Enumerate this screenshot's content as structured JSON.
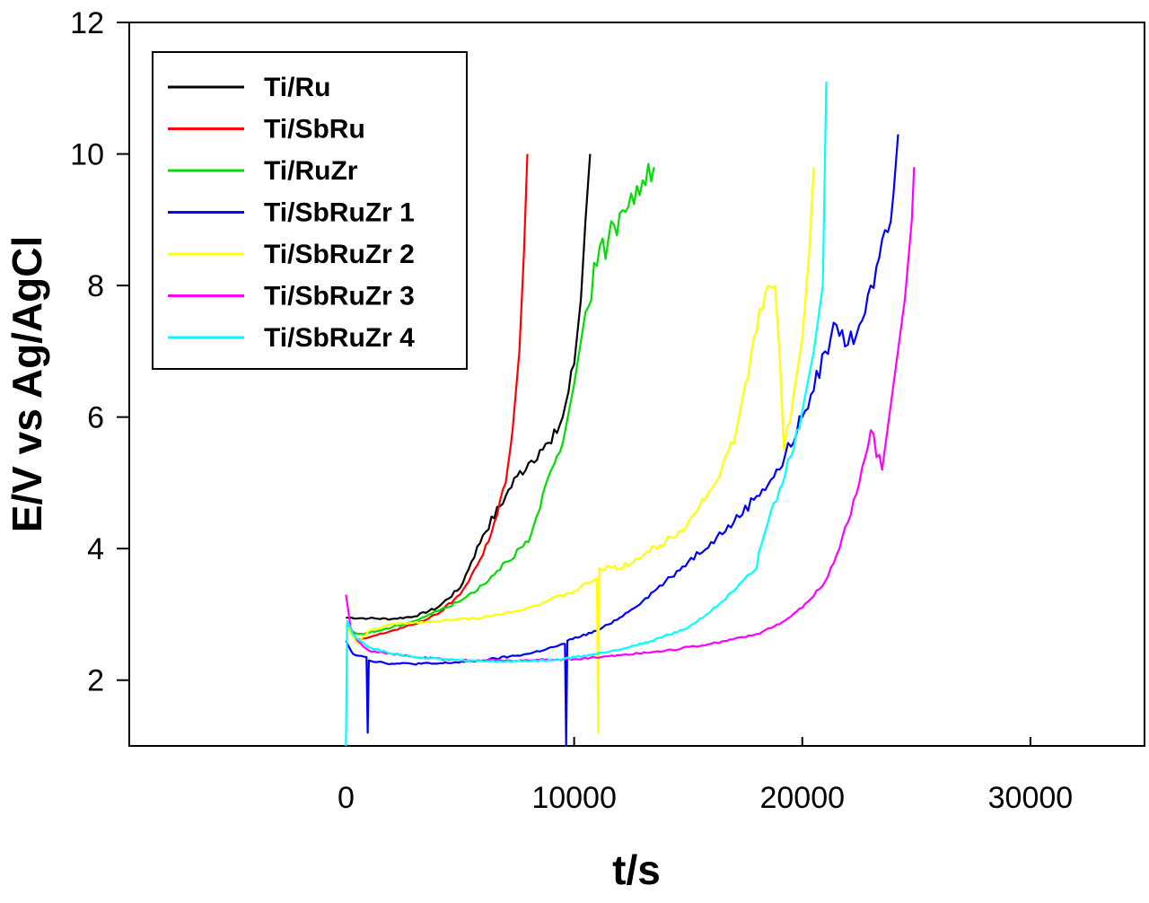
{
  "chart_data": {
    "type": "line",
    "title": "",
    "xlabel": "t/s",
    "ylabel": "E/V vs Ag/AgCl",
    "xlim": [
      -9500,
      35000
    ],
    "ylim": [
      1,
      12
    ],
    "xticks": [
      0,
      10000,
      20000,
      30000
    ],
    "yticks": [
      2,
      4,
      6,
      8,
      10,
      12
    ],
    "grid": false,
    "legend_position": "top-left",
    "series": [
      {
        "name": "Ti/Ru",
        "color": "#000000",
        "points": [
          [
            0,
            2.95
          ],
          [
            1000,
            2.94
          ],
          [
            2000,
            2.93
          ],
          [
            3000,
            2.97
          ],
          [
            4000,
            3.1
          ],
          [
            5000,
            3.4
          ],
          [
            5500,
            3.8
          ],
          [
            6000,
            4.2
          ],
          [
            7000,
            4.8
          ],
          [
            7500,
            5.1
          ],
          [
            8000,
            5.3
          ],
          [
            8500,
            5.5
          ],
          [
            9000,
            5.6
          ],
          [
            9500,
            6.0
          ],
          [
            10000,
            6.8
          ],
          [
            10300,
            7.8
          ],
          [
            10500,
            9.0
          ],
          [
            10700,
            10.0
          ]
        ]
      },
      {
        "name": "Ti/SbRu",
        "color": "#ff0000",
        "points": [
          [
            0,
            2.85
          ],
          [
            500,
            2.6
          ],
          [
            1000,
            2.65
          ],
          [
            2000,
            2.75
          ],
          [
            3000,
            2.85
          ],
          [
            4000,
            3.0
          ],
          [
            5000,
            3.3
          ],
          [
            6000,
            3.9
          ],
          [
            6500,
            4.4
          ],
          [
            7000,
            5.0
          ],
          [
            7300,
            5.8
          ],
          [
            7600,
            7.0
          ],
          [
            7800,
            8.5
          ],
          [
            7950,
            10.0
          ]
        ]
      },
      {
        "name": "Ti/RuZr",
        "color": "#00dd00",
        "points": [
          [
            0,
            2.8
          ],
          [
            500,
            2.7
          ],
          [
            1000,
            2.72
          ],
          [
            2000,
            2.8
          ],
          [
            3000,
            2.9
          ],
          [
            4000,
            3.05
          ],
          [
            5000,
            3.2
          ],
          [
            6000,
            3.45
          ],
          [
            7000,
            3.8
          ],
          [
            8000,
            4.1
          ],
          [
            8500,
            4.6
          ],
          [
            9000,
            5.2
          ],
          [
            9500,
            5.6
          ],
          [
            10000,
            6.5
          ],
          [
            10500,
            7.6
          ],
          [
            11000,
            8.3
          ],
          [
            11500,
            8.7
          ],
          [
            12000,
            9.1
          ],
          [
            12500,
            9.4
          ],
          [
            13000,
            9.6
          ],
          [
            13500,
            9.8
          ]
        ]
      },
      {
        "name": "Ti/SbRuZr 1",
        "color": "#0000ff",
        "points": [
          [
            0,
            2.6
          ],
          [
            300,
            2.4
          ],
          [
            900,
            2.35
          ],
          [
            950,
            1.2
          ],
          [
            1000,
            2.3
          ],
          [
            2000,
            2.25
          ],
          [
            4000,
            2.25
          ],
          [
            6000,
            2.3
          ],
          [
            8000,
            2.4
          ],
          [
            9600,
            2.55
          ],
          [
            9650,
            1.0
          ],
          [
            9700,
            2.6
          ],
          [
            11000,
            2.75
          ],
          [
            12000,
            2.95
          ],
          [
            13000,
            3.2
          ],
          [
            14000,
            3.5
          ],
          [
            15000,
            3.8
          ],
          [
            16000,
            4.1
          ],
          [
            17000,
            4.4
          ],
          [
            18000,
            4.8
          ],
          [
            19000,
            5.2
          ],
          [
            20000,
            6.0
          ],
          [
            20500,
            6.4
          ],
          [
            21000,
            7.0
          ],
          [
            21500,
            7.4
          ],
          [
            22000,
            7.1
          ],
          [
            22500,
            7.4
          ],
          [
            23000,
            8.0
          ],
          [
            23500,
            8.7
          ],
          [
            24000,
            9.4
          ],
          [
            24200,
            10.3
          ]
        ]
      },
      {
        "name": "Ti/SbRuZr 2",
        "color": "#ffff00",
        "points": [
          [
            0,
            2.85
          ],
          [
            500,
            2.55
          ],
          [
            1000,
            2.75
          ],
          [
            2000,
            2.85
          ],
          [
            4000,
            2.9
          ],
          [
            6000,
            2.95
          ],
          [
            8000,
            3.1
          ],
          [
            10000,
            3.35
          ],
          [
            11000,
            3.55
          ],
          [
            11050,
            1.2
          ],
          [
            11100,
            3.7
          ],
          [
            12000,
            3.7
          ],
          [
            14000,
            4.1
          ],
          [
            15000,
            4.4
          ],
          [
            16000,
            4.9
          ],
          [
            17000,
            5.6
          ],
          [
            17500,
            6.5
          ],
          [
            18000,
            7.3
          ],
          [
            18500,
            8.0
          ],
          [
            18800,
            8.0
          ],
          [
            19000,
            7.0
          ],
          [
            19200,
            5.5
          ],
          [
            19600,
            6.3
          ],
          [
            20000,
            7.2
          ],
          [
            20300,
            8.5
          ],
          [
            20500,
            9.8
          ]
        ]
      },
      {
        "name": "Ti/SbRuZr 3",
        "color": "#ff00ff",
        "points": [
          [
            0,
            3.3
          ],
          [
            200,
            2.8
          ],
          [
            500,
            2.6
          ],
          [
            1000,
            2.45
          ],
          [
            2000,
            2.4
          ],
          [
            3000,
            2.35
          ],
          [
            5000,
            2.3
          ],
          [
            8000,
            2.3
          ],
          [
            10000,
            2.32
          ],
          [
            12000,
            2.38
          ],
          [
            14000,
            2.45
          ],
          [
            16000,
            2.55
          ],
          [
            18000,
            2.7
          ],
          [
            19000,
            2.85
          ],
          [
            20000,
            3.1
          ],
          [
            21000,
            3.5
          ],
          [
            21500,
            3.9
          ],
          [
            22000,
            4.4
          ],
          [
            22500,
            5.0
          ],
          [
            23000,
            5.8
          ],
          [
            23500,
            5.2
          ],
          [
            24000,
            6.5
          ],
          [
            24500,
            7.8
          ],
          [
            24800,
            9.0
          ],
          [
            24900,
            9.8
          ]
        ]
      },
      {
        "name": "Ti/SbRuZr 4",
        "color": "#00ffff",
        "points": [
          [
            0,
            1.0
          ],
          [
            50,
            2.9
          ],
          [
            300,
            2.7
          ],
          [
            1000,
            2.5
          ],
          [
            2000,
            2.4
          ],
          [
            3000,
            2.35
          ],
          [
            5000,
            2.3
          ],
          [
            7000,
            2.28
          ],
          [
            9000,
            2.3
          ],
          [
            11000,
            2.4
          ],
          [
            13000,
            2.55
          ],
          [
            15000,
            2.8
          ],
          [
            16000,
            3.05
          ],
          [
            17000,
            3.35
          ],
          [
            18000,
            3.7
          ],
          [
            18100,
            3.95
          ],
          [
            18500,
            4.4
          ],
          [
            19000,
            4.9
          ],
          [
            19500,
            5.4
          ],
          [
            20000,
            6.1
          ],
          [
            20500,
            7.0
          ],
          [
            20900,
            8.0
          ],
          [
            21050,
            11.1
          ]
        ]
      }
    ]
  }
}
